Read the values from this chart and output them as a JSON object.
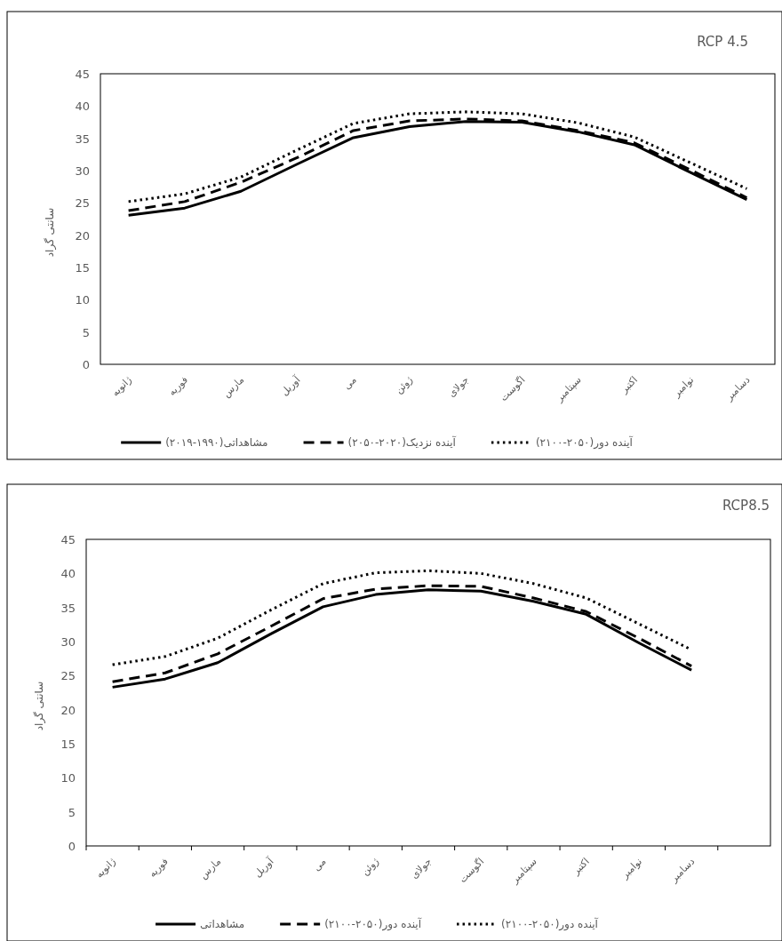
{
  "chart_data": [
    {
      "type": "line",
      "title": "RCP 4.5",
      "ylabel": "سانتی گراد",
      "categories": [
        "ژانویه",
        "فوریه",
        "مارس",
        "آوریل",
        "می",
        "ژوئن",
        "جولای",
        "اگوست",
        "سپتامبر",
        "اکتبر",
        "نوامبر",
        "دسامبر"
      ],
      "ylim": [
        0,
        45
      ],
      "yticks": [
        0,
        5,
        10,
        15,
        20,
        25,
        30,
        35,
        40,
        45
      ],
      "grid": false,
      "legend": "bottom",
      "series": [
        {
          "name": "مشاهداتی(۱۹۹۰-۲۰۱۹)",
          "color": "#000000",
          "line_style": "solid",
          "values": [
            23.1,
            24.2,
            26.8,
            31,
            35.1,
            36.8,
            37.6,
            37.5,
            36,
            34,
            29.7,
            25.5
          ]
        },
        {
          "name": "آینده نزدیک(۲۰۲۰-۲۰۵۰)",
          "color": "#000000",
          "line_style": "dashed",
          "values": [
            23.8,
            25.2,
            28.2,
            32,
            36.2,
            37.7,
            38,
            37.7,
            36.2,
            34.3,
            30.1,
            25.8
          ]
        },
        {
          "name": "آینده دور(۲۰۵۰-۲۱۰۰)",
          "color": "#000000",
          "line_style": "dotted",
          "values": [
            25.2,
            26.4,
            29,
            33.2,
            37.3,
            38.8,
            39.1,
            38.8,
            37.4,
            35.2,
            31.2,
            27.2
          ]
        }
      ]
    },
    {
      "type": "line",
      "title": "RCP8.5",
      "ylabel": "سانتی گراد",
      "categories": [
        "ژانویه",
        "فوریه",
        "مارس",
        "آوریل",
        "می",
        "ژوئن",
        "جولای",
        "اگوست",
        "سپتامبر",
        "اکتبر",
        "نوامبر",
        "دسامبر",
        null
      ],
      "ylim": [
        0,
        45
      ],
      "yticks": [
        0,
        5,
        10,
        15,
        20,
        25,
        30,
        35,
        40,
        45
      ],
      "grid": false,
      "legend": "bottom",
      "series": [
        {
          "name": "مشاهداتی",
          "color": "#000000",
          "line_style": "solid",
          "values": [
            23.3,
            24.5,
            26.9,
            31.1,
            35.1,
            36.9,
            37.6,
            37.4,
            35.9,
            34,
            29.8,
            25.8,
            null
          ]
        },
        {
          "name": "آینده دور(۲۰۵۰-۲۱۰۰)",
          "color": "#000000",
          "line_style": "dashed",
          "values": [
            24.1,
            25.4,
            28.2,
            32.2,
            36.3,
            37.7,
            38.2,
            38.1,
            36.4,
            34.4,
            30.5,
            26.4,
            null
          ]
        },
        {
          "name": "آینده دور(۲۰۵۰-۲۱۰۰)",
          "color": "#000000",
          "line_style": "dotted",
          "values": [
            26.6,
            27.8,
            30.5,
            34.6,
            38.5,
            40.1,
            40.4,
            40,
            38.5,
            36.4,
            32.6,
            28.8,
            null
          ]
        }
      ]
    }
  ]
}
